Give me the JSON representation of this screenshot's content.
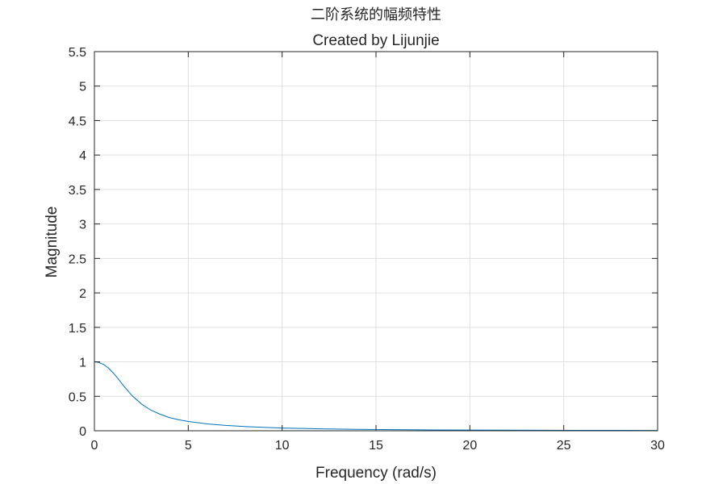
{
  "chart_data": {
    "type": "line",
    "title": "二阶系统的幅频特性",
    "subtitle": "Created by Lijunjie",
    "xlabel": "Frequency (rad/s)",
    "ylabel": "Magnitude",
    "xlim": [
      0,
      30
    ],
    "ylim": [
      0,
      5.5
    ],
    "x_ticks": [
      "0",
      "5",
      "10",
      "15",
      "20",
      "25",
      "30"
    ],
    "y_ticks": [
      "0",
      "0.5",
      "1",
      "1.5",
      "2",
      "2.5",
      "3",
      "3.5",
      "4",
      "4.5",
      "5",
      "5.5"
    ],
    "grid": true,
    "series": [
      {
        "color": "#0072bd",
        "x": [
          0,
          0.25,
          0.5,
          0.75,
          1,
          1.25,
          1.5,
          1.75,
          2,
          2.5,
          3,
          3.5,
          4,
          4.5,
          5,
          6,
          7,
          8,
          9,
          10,
          12,
          14,
          16,
          18,
          20,
          22,
          24,
          26,
          28,
          30
        ],
        "y": [
          1.0,
          0.99,
          0.96,
          0.91,
          0.84,
          0.76,
          0.67,
          0.59,
          0.51,
          0.39,
          0.3,
          0.24,
          0.19,
          0.16,
          0.135,
          0.1,
          0.077,
          0.061,
          0.049,
          0.04,
          0.028,
          0.021,
          0.016,
          0.012,
          0.01,
          0.0083,
          0.007,
          0.0059,
          0.0051,
          0.0045
        ]
      }
    ],
    "colors": {
      "axes": "#262626",
      "grid": "#dfdfdf",
      "line": "#0072bd"
    }
  }
}
